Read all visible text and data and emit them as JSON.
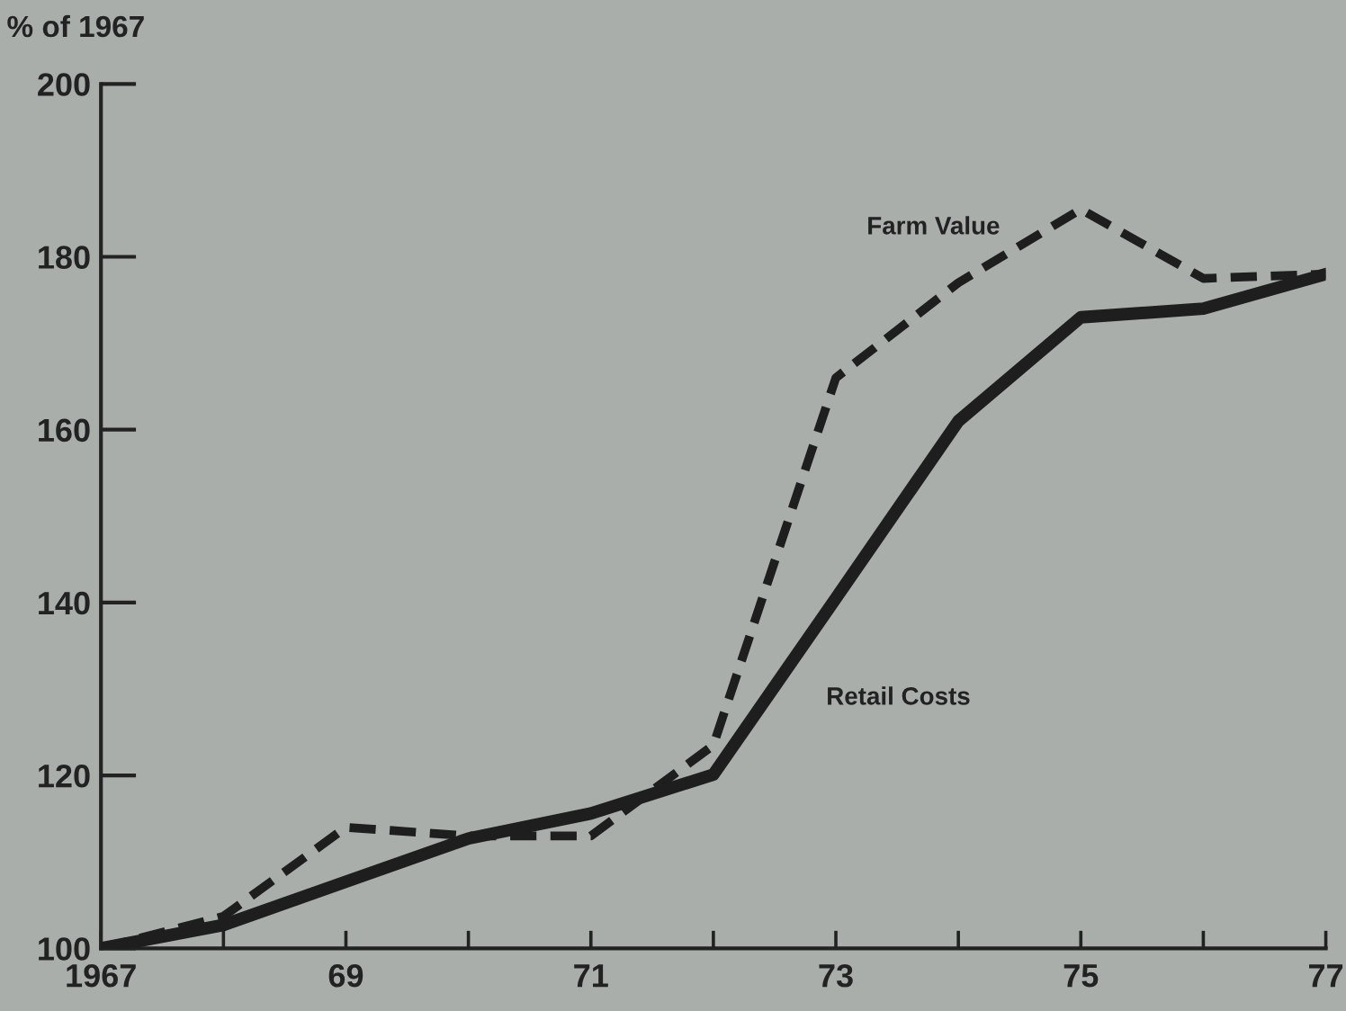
{
  "chart_data": {
    "type": "line",
    "ylabel": "% of 1967",
    "x": [
      1967,
      1968,
      1969,
      1970,
      1971,
      1972,
      1973,
      1974,
      1975,
      1976,
      1977
    ],
    "series": [
      {
        "name": "Farm Value",
        "color": "#1e1e1e",
        "line_style": "dashed",
        "values": [
          100,
          103.7,
          114,
          113,
          113,
          123.5,
          166,
          177,
          185.5,
          177.5,
          178
        ]
      },
      {
        "name": "Retail Costs",
        "color": "#1e1e1e",
        "line_style": "solid",
        "values": [
          100,
          102.7,
          107.7,
          112.7,
          115.6,
          120.1,
          140.5,
          161,
          173,
          174,
          178
        ]
      }
    ],
    "xlim": [
      1967,
      1977
    ],
    "ylim": [
      100,
      200
    ],
    "xticks": [
      {
        "value": 1967,
        "label": "1967"
      },
      {
        "value": 1968,
        "label": null
      },
      {
        "value": 1969,
        "label": "69"
      },
      {
        "value": 1970,
        "label": null
      },
      {
        "value": 1971,
        "label": "71"
      },
      {
        "value": 1972,
        "label": null
      },
      {
        "value": 1973,
        "label": "73"
      },
      {
        "value": 1974,
        "label": null
      },
      {
        "value": 1975,
        "label": "75"
      },
      {
        "value": 1976,
        "label": null
      },
      {
        "value": 1977,
        "label": "77"
      }
    ],
    "yticks": [
      100,
      120,
      140,
      160,
      180,
      200
    ],
    "grid": false,
    "legend": false,
    "marker": "none"
  }
}
